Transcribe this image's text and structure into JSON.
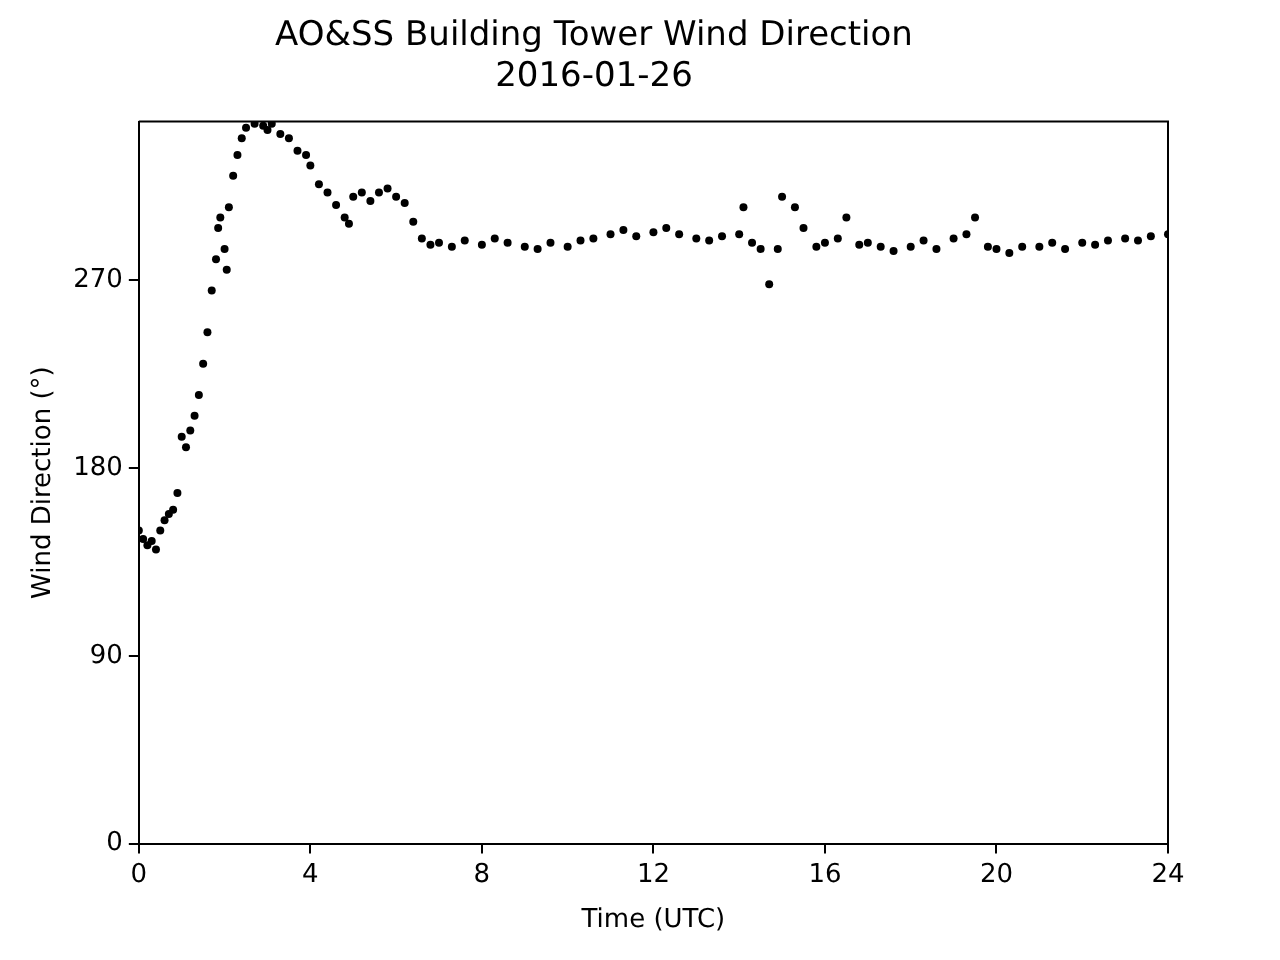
{
  "chart_data": {
    "type": "scatter",
    "title": "AO&SS Building Tower Wind Direction",
    "subtitle": "2016-01-26",
    "xlabel": "Time (UTC)",
    "ylabel": "Wind Direction (°)",
    "xlim": [
      0,
      24
    ],
    "xticks": [
      0,
      4,
      8,
      12,
      16,
      20,
      24
    ],
    "ylim": [
      0,
      346
    ],
    "yticks": [
      0,
      90,
      180,
      270
    ],
    "grid": false,
    "marker": "circle",
    "legend": false,
    "series": [
      {
        "color": "#000000",
        "x": [
          0,
          0.1,
          0.2,
          0.3,
          0.4,
          0.5,
          0.6,
          0.7,
          0.8,
          0.9,
          1.0,
          1.1,
          1.2,
          1.3,
          1.4,
          1.5,
          1.6,
          1.7,
          1.8,
          1.85,
          1.9,
          2.0,
          2.05,
          2.1,
          2.2,
          2.3,
          2.4,
          2.5,
          2.7,
          2.9,
          3.0,
          3.1,
          3.3,
          3.5,
          3.7,
          3.9,
          4.0,
          4.2,
          4.4,
          4.6,
          4.8,
          4.9,
          5.0,
          5.2,
          5.4,
          5.6,
          5.8,
          6.0,
          6.2,
          6.4,
          6.6,
          6.8,
          7.0,
          7.3,
          7.6,
          8.0,
          8.3,
          8.6,
          9.0,
          9.3,
          9.6,
          10.0,
          10.3,
          10.6,
          11.0,
          11.3,
          11.6,
          12.0,
          12.3,
          12.6,
          13.0,
          13.3,
          13.6,
          14.0,
          14.1,
          14.3,
          14.5,
          14.7,
          14.9,
          15.0,
          15.3,
          15.5,
          15.8,
          16.0,
          16.3,
          16.5,
          16.8,
          17.0,
          17.3,
          17.6,
          18.0,
          18.3,
          18.6,
          19.0,
          19.3,
          19.5,
          19.8,
          20.0,
          20.3,
          20.6,
          21.0,
          21.3,
          21.6,
          22.0,
          22.3,
          22.6,
          23.0,
          23.3,
          23.6,
          24.0
        ],
        "values": [
          150,
          146,
          143,
          145,
          141,
          150,
          155,
          158,
          160,
          168,
          195,
          190,
          198,
          205,
          215,
          230,
          245,
          265,
          280,
          295,
          300,
          285,
          275,
          305,
          320,
          330,
          338,
          343,
          345,
          344,
          342,
          345,
          340,
          338,
          332,
          330,
          325,
          316,
          312,
          306,
          300,
          297,
          310,
          312,
          308,
          312,
          314,
          310,
          307,
          298,
          290,
          287,
          288,
          286,
          289,
          287,
          290,
          288,
          286,
          285,
          288,
          286,
          289,
          290,
          292,
          294,
          291,
          293,
          295,
          292,
          290,
          289,
          291,
          292,
          305,
          288,
          285,
          268,
          285,
          310,
          305,
          295,
          286,
          288,
          290,
          300,
          287,
          288,
          286,
          284,
          286,
          289,
          285,
          290,
          292,
          300,
          286,
          285,
          283,
          286,
          286,
          288,
          285,
          288,
          287,
          289,
          290,
          289,
          291,
          292
        ]
      }
    ]
  }
}
